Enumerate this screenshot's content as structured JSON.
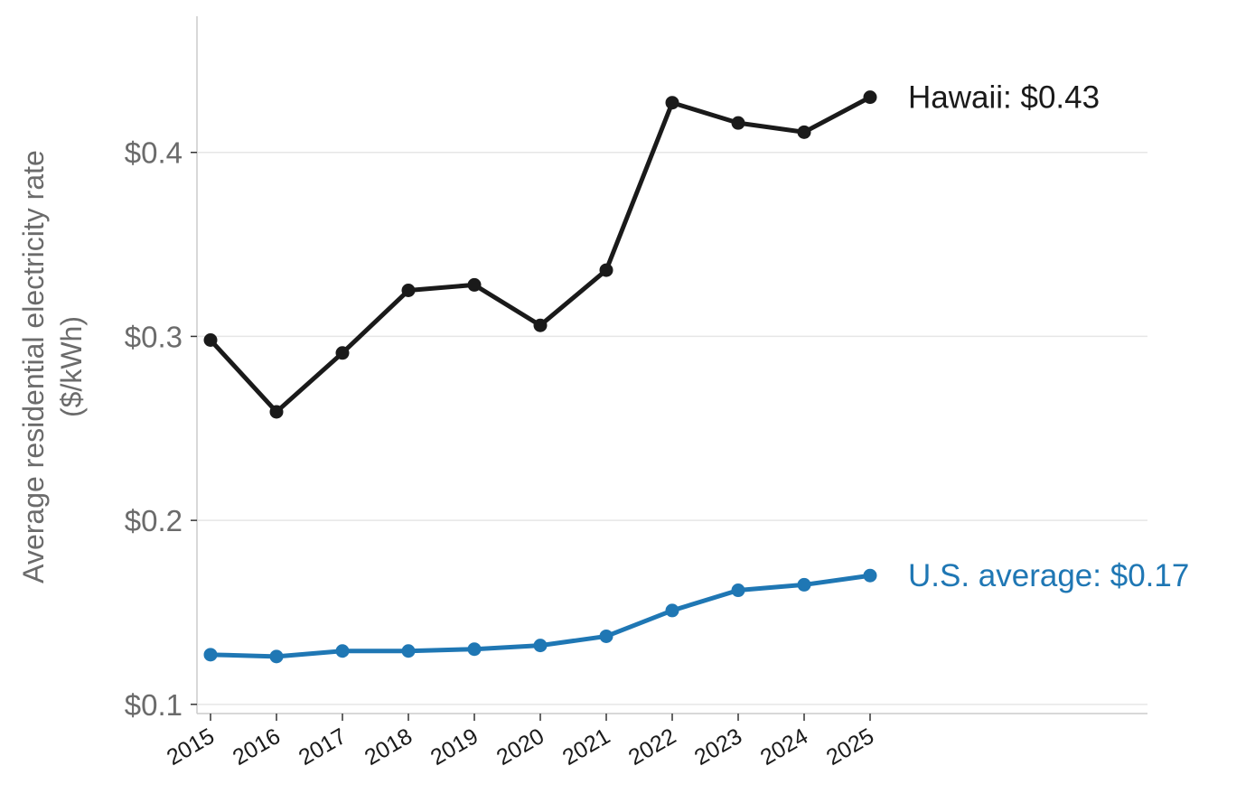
{
  "chart_data": {
    "type": "line",
    "title": "",
    "xlabel": "",
    "ylabel": "Average residential electricity rate",
    "ylabel_unit": "($/kWh)",
    "x": [
      "2015",
      "2016",
      "2017",
      "2018",
      "2019",
      "2020",
      "2021",
      "2022",
      "2023",
      "2024",
      "2025"
    ],
    "ylim": [
      0.095,
      0.474
    ],
    "yticks": [
      {
        "value": 0.1,
        "label": "$0.1"
      },
      {
        "value": 0.2,
        "label": "$0.2"
      },
      {
        "value": 0.3,
        "label": "$0.3"
      },
      {
        "value": 0.4,
        "label": "$0.4"
      }
    ],
    "grid": "horizontal",
    "series": [
      {
        "name": "Hawaii",
        "label": "Hawaii: $0.43",
        "color": "#1a1a1a",
        "values": [
          0.298,
          0.259,
          0.291,
          0.325,
          0.328,
          0.306,
          0.336,
          0.427,
          0.416,
          0.411,
          0.43
        ]
      },
      {
        "name": "U.S. average",
        "label": "U.S. average: $0.17",
        "color": "#1f77b4",
        "values": [
          0.127,
          0.126,
          0.129,
          0.129,
          0.13,
          0.132,
          0.137,
          0.151,
          0.162,
          0.165,
          0.17
        ]
      }
    ]
  }
}
